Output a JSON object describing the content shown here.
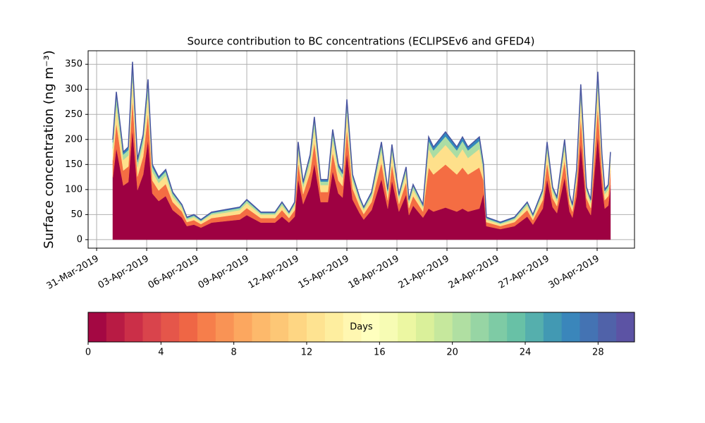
{
  "chart_data": {
    "type": "stacked-area",
    "title": "Source contribution to BC concentrations (ECLIPSEv6 and GFED4)",
    "y_label": "Surface concentration (ng m⁻³)",
    "x": [
      0.97,
      1.18,
      1.6,
      1.9,
      2.15,
      2.45,
      2.79,
      3.08,
      3.34,
      3.72,
      4.14,
      4.56,
      5.11,
      5.41,
      5.83,
      6.25,
      6.89,
      7.73,
      8.58,
      9.0,
      9.84,
      10.69,
      11.11,
      11.53,
      11.87,
      12.08,
      12.38,
      12.8,
      13.05,
      13.43,
      13.86,
      14.15,
      14.49,
      14.74,
      15.0,
      15.34,
      15.76,
      16.01,
      16.48,
      17.07,
      17.45,
      17.7,
      18.12,
      18.55,
      18.72,
      18.97,
      19.56,
      19.9,
      20.19,
      20.91,
      21.59,
      21.93,
      22.26,
      22.94,
      23.19,
      23.36,
      24.2,
      25.05,
      25.81,
      26.15,
      26.74,
      27.0,
      27.33,
      27.59,
      28.05,
      28.35,
      28.52,
      28.77,
      29.02,
      29.36,
      29.62,
      30.04,
      30.29,
      30.46,
      30.67,
      30.8
    ],
    "series": [
      {
        "color": "#9e0142",
        "values": [
          124,
          183,
          108,
          115,
          220,
          99,
          130,
          199,
          92,
          77,
          87,
          59,
          44,
          27,
          30,
          24,
          34,
          37,
          40,
          49,
          34,
          34,
          46,
          34,
          46,
          121,
          71,
          106,
          152,
          75,
          75,
          137,
          92,
          84,
          173,
          80,
          53,
          40,
          59,
          121,
          62,
          118,
          56,
          90,
          49,
          68,
          44,
          62,
          56,
          64,
          56,
          62,
          56,
          62,
          92,
          27,
          21,
          27,
          46,
          30,
          62,
          121,
          65,
          53,
          124,
          56,
          44,
          87,
          192,
          65,
          49,
          208,
          106,
          62,
          68,
          108
        ]
      },
      {
        "color": "#f46d43",
        "values": [
          34,
          50,
          30,
          31,
          60,
          27,
          36,
          54,
          26,
          21,
          24,
          16,
          12,
          8,
          9,
          7,
          9,
          10,
          11,
          14,
          9,
          9,
          13,
          9,
          13,
          33,
          20,
          29,
          42,
          20,
          20,
          37,
          26,
          23,
          48,
          22,
          14,
          11,
          16,
          33,
          17,
          32,
          15,
          25,
          14,
          19,
          12,
          82,
          74,
          86,
          74,
          82,
          74,
          82,
          26,
          8,
          6,
          8,
          13,
          9,
          17,
          33,
          18,
          14,
          34,
          15,
          12,
          24,
          53,
          18,
          14,
          57,
          29,
          17,
          19,
          30
        ]
      },
      {
        "color": "#fee08b",
        "values": [
          24,
          35,
          21,
          22,
          43,
          19,
          25,
          38,
          18,
          15,
          17,
          11,
          8,
          5,
          6,
          5,
          7,
          7,
          8,
          10,
          7,
          7,
          9,
          7,
          9,
          23,
          14,
          20,
          29,
          14,
          14,
          26,
          18,
          16,
          34,
          16,
          10,
          8,
          11,
          23,
          12,
          23,
          11,
          17,
          10,
          13,
          8,
          37,
          33,
          39,
          33,
          37,
          33,
          37,
          18,
          5,
          4,
          5,
          9,
          6,
          12,
          23,
          13,
          10,
          24,
          11,
          8,
          17,
          37,
          13,
          10,
          40,
          20,
          12,
          13,
          21
        ]
      },
      {
        "color": "#abdda4",
        "values": [
          12,
          18,
          11,
          11,
          21,
          10,
          13,
          19,
          9,
          8,
          8,
          6,
          4,
          3,
          3,
          2,
          3,
          4,
          4,
          5,
          3,
          3,
          5,
          3,
          5,
          12,
          7,
          10,
          15,
          7,
          7,
          13,
          9,
          8,
          17,
          8,
          5,
          4,
          6,
          12,
          6,
          11,
          5,
          9,
          5,
          7,
          4,
          16,
          15,
          17,
          15,
          16,
          15,
          16,
          9,
          3,
          2,
          3,
          5,
          3,
          6,
          12,
          6,
          5,
          12,
          5,
          4,
          8,
          19,
          6,
          5,
          20,
          10,
          6,
          7,
          11
        ]
      },
      {
        "color": "#3288bd",
        "values": [
          6,
          9,
          5,
          6,
          11,
          5,
          6,
          10,
          5,
          4,
          4,
          3,
          2,
          2,
          2,
          2,
          2,
          2,
          2,
          2,
          2,
          2,
          2,
          2,
          2,
          6,
          3,
          5,
          7,
          4,
          4,
          7,
          5,
          4,
          8,
          4,
          3,
          2,
          3,
          6,
          3,
          6,
          3,
          4,
          2,
          3,
          2,
          8,
          7,
          9,
          7,
          8,
          7,
          8,
          5,
          2,
          2,
          2,
          2,
          2,
          3,
          6,
          3,
          3,
          6,
          3,
          2,
          4,
          9,
          3,
          2,
          10,
          5,
          3,
          3,
          5
        ]
      }
    ],
    "outline_color": "#4a55a0",
    "xlim": [
      -0.51,
      32.24
    ],
    "xticks": [
      {
        "value": 0,
        "label": "31-Mar-2019"
      },
      {
        "value": 3,
        "label": "03-Apr-2019"
      },
      {
        "value": 6,
        "label": "06-Apr-2019"
      },
      {
        "value": 9,
        "label": "09-Apr-2019"
      },
      {
        "value": 12,
        "label": "12-Apr-2019"
      },
      {
        "value": 15,
        "label": "15-Apr-2019"
      },
      {
        "value": 18,
        "label": "18-Apr-2019"
      },
      {
        "value": 21,
        "label": "21-Apr-2019"
      },
      {
        "value": 24,
        "label": "24-Apr-2019"
      },
      {
        "value": 27,
        "label": "27-Apr-2019"
      },
      {
        "value": 30,
        "label": "30-Apr-2019"
      }
    ],
    "ylim": [
      -17,
      377
    ],
    "yticks": [
      0,
      50,
      100,
      150,
      200,
      250,
      300,
      350
    ],
    "grid": true,
    "colorbar": {
      "label": "Days",
      "lim": [
        0,
        30
      ],
      "ticks": [
        0,
        4,
        8,
        12,
        16,
        20,
        24,
        28
      ],
      "colors": [
        "#a40843",
        "#b81b44",
        "#cb2f48",
        "#d9444c",
        "#e5564a",
        "#ef6645",
        "#f67e4b",
        "#f99355",
        "#fca75f",
        "#fdb96b",
        "#fdc776",
        "#fed683",
        "#fee391",
        "#feee9f",
        "#fff7b1",
        "#ffffbe",
        "#f7fcb4",
        "#ecf7a2",
        "#daf09a",
        "#c6e89d",
        "#b0dfa2",
        "#97d5a4",
        "#7ecba5",
        "#68c1a6",
        "#55afad",
        "#4299b3",
        "#3a86bb",
        "#4473b3",
        "#5062a9",
        "#5c53a4"
      ]
    }
  }
}
